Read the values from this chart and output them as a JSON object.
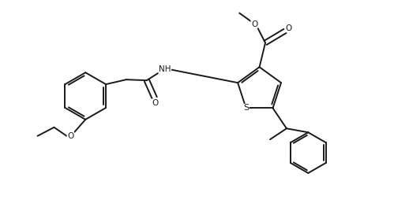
{
  "bg_color": "#ffffff",
  "line_color": "#1a1a1a",
  "line_width": 1.4,
  "font_size": 7.5,
  "fig_width": 4.99,
  "fig_height": 2.58,
  "dpi": 100,
  "xlim": [
    0,
    9.98
  ],
  "ylim": [
    0,
    5.16
  ]
}
